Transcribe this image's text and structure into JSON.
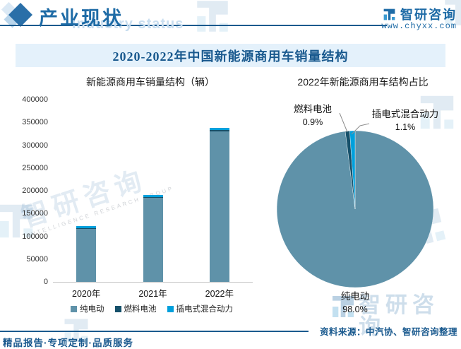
{
  "header": {
    "section_title": "产业现状",
    "section_title_en_watermark": "Industry status",
    "brand_name": "智研咨询",
    "brand_url": "www.chyxx.com"
  },
  "main_title": "2020-2022年中国新能源商用车销量结构",
  "chart_data": [
    {
      "type": "bar",
      "stacked": true,
      "title": "新能源商用车销量结构（辆）",
      "categories": [
        "2020年",
        "2021年",
        "2022年"
      ],
      "series": [
        {
          "name": "纯电动",
          "color": "#5f92a9",
          "values": [
            116000,
            185000,
            331000
          ]
        },
        {
          "name": "燃料电池",
          "color": "#15506a",
          "values": [
            1200,
            1700,
            3100
          ]
        },
        {
          "name": "插电式混合动力",
          "color": "#00a0dc",
          "values": [
            4800,
            4500,
            3800
          ]
        }
      ],
      "ylim": [
        0,
        400000
      ],
      "ytick_step": 50000,
      "grid": false,
      "legend_position": "bottom"
    },
    {
      "type": "pie",
      "title": "2022年新能源商用车结构占比",
      "slices": [
        {
          "label": "纯电动",
          "percent": 98.0,
          "color": "#5f92a9"
        },
        {
          "label": "燃料电池",
          "percent": 0.9,
          "color": "#15506a"
        },
        {
          "label": "插电式混合动力",
          "percent": 1.1,
          "color": "#00a0dc"
        }
      ],
      "start_angle_deg": 0,
      "direction": "clockwise"
    }
  ],
  "footer": {
    "source": "资料来源：中汽协、智研咨询整理",
    "tagline": "精品报告·专项定制·品质服务"
  },
  "watermarks": {
    "brand_cn": "智研咨询",
    "brand_en": "INTELLIGENCE RESEARCH GROUP"
  },
  "colors": {
    "accent_blue": "#1e6ba6",
    "dark_blue_line": "#1b5a8e",
    "title_band_bg": "#e4f1fb",
    "bev_teal": "#5f92a9",
    "fcv_navy": "#15506a",
    "phev_cyan": "#00a0dc"
  }
}
